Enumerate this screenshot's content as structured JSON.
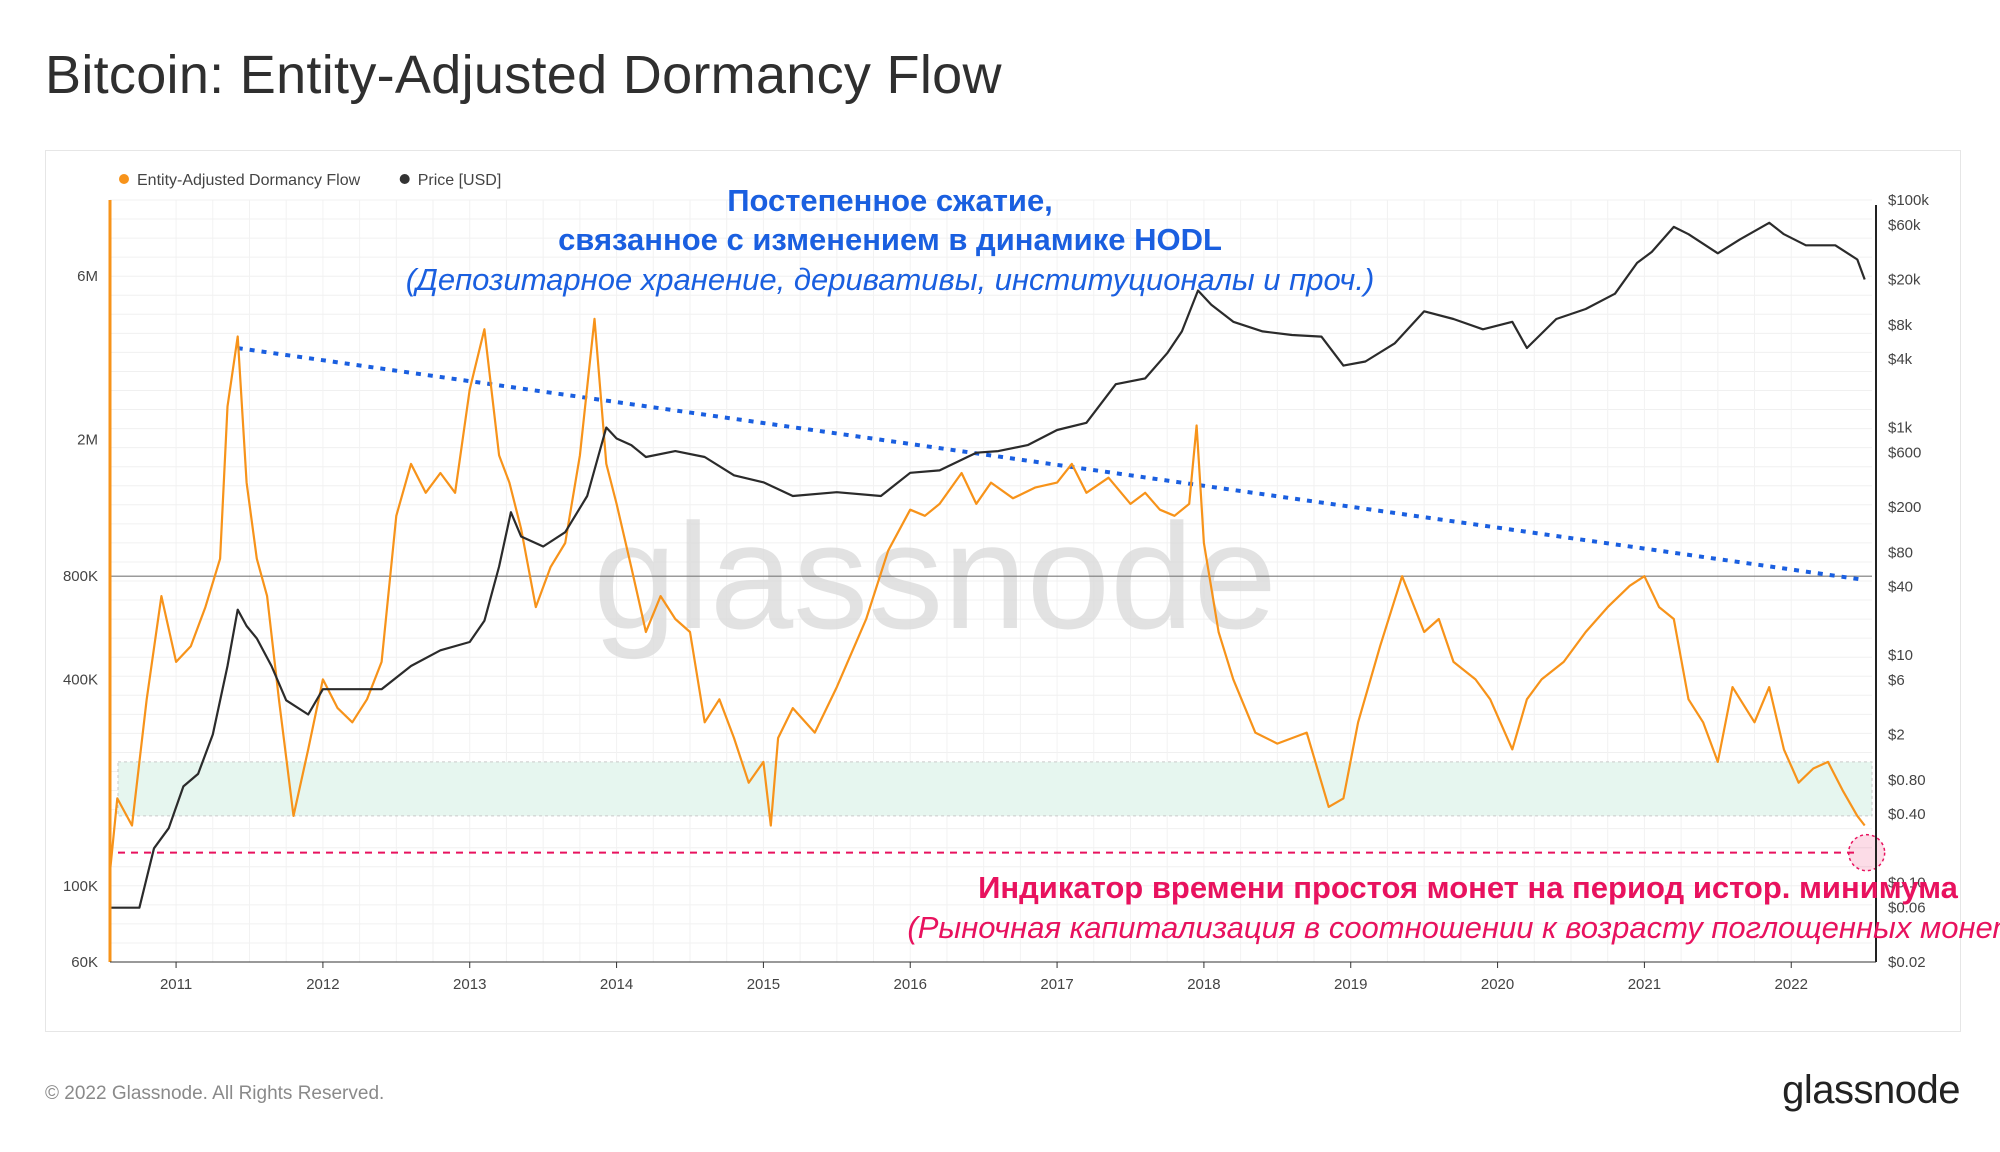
{
  "page": {
    "title": "Bitcoin: Entity-Adjusted Dormancy Flow",
    "copyright": "© 2022 Glassnode. All Rights Reserved.",
    "logo": "glassnode",
    "watermark": "glassnode"
  },
  "legend": [
    {
      "name": "Entity-Adjusted Dormancy Flow",
      "color": "#f7931a"
    },
    {
      "name": "Price [USD]",
      "color": "#333333"
    }
  ],
  "annotations": {
    "compression_line1": "Постепенное сжатие,",
    "compression_line2": "связанное с изменением в динамике HODL",
    "compression_line3": "(Депозитарное хранение, деривативы, институционалы и проч.)",
    "low_line1": "Индикатор времени простоя монет  на период истор. минимума",
    "low_line2": "(Рыночная капитализация в соотношении к возрасту поглощенных монет)",
    "compression_color": "#1a5fe0",
    "low_color": "#e8125e"
  },
  "chart_data": {
    "type": "line",
    "x_ticks": [
      "2011",
      "2012",
      "2013",
      "2014",
      "2015",
      "2016",
      "2017",
      "2018",
      "2019",
      "2020",
      "2021",
      "2022"
    ],
    "x_range": [
      2010.55,
      2022.55
    ],
    "y_left": {
      "label": "",
      "scale": "log",
      "range": [
        60000,
        10000000
      ],
      "tick_labels": [
        "6M",
        "2M",
        "800K",
        "400K",
        "100K",
        "60K"
      ],
      "tick_values": [
        6000000,
        2000000,
        800000,
        400000,
        100000,
        60000
      ]
    },
    "y_right": {
      "label": "",
      "scale": "log",
      "range": [
        0.02,
        100000
      ],
      "tick_labels": [
        "$100k",
        "$60k",
        "$20k",
        "$8k",
        "$4k",
        "$1k",
        "$600",
        "$200",
        "$80",
        "$40",
        "$10",
        "$6",
        "$2",
        "$0.80",
        "$0.40",
        "$0.10",
        "$0.06",
        "$0.02"
      ],
      "tick_values": [
        100000,
        60000,
        20000,
        8000,
        4000,
        1000,
        600,
        200,
        80,
        40,
        10,
        6,
        2,
        0.8,
        0.4,
        0.1,
        0.06,
        0.02
      ]
    },
    "series": [
      {
        "name": "Entity-Adjusted Dormancy Flow",
        "axis": "left",
        "color": "#f7931a",
        "x": [
          2010.55,
          2010.6,
          2010.7,
          2010.8,
          2010.9,
          2011.0,
          2011.1,
          2011.2,
          2011.3,
          2011.35,
          2011.42,
          2011.48,
          2011.55,
          2011.62,
          2011.7,
          2011.8,
          2011.9,
          2012.0,
          2012.1,
          2012.2,
          2012.3,
          2012.4,
          2012.5,
          2012.6,
          2012.7,
          2012.8,
          2012.9,
          2013.0,
          2013.1,
          2013.2,
          2013.27,
          2013.35,
          2013.45,
          2013.55,
          2013.65,
          2013.75,
          2013.85,
          2013.93,
          2014.0,
          2014.1,
          2014.2,
          2014.3,
          2014.4,
          2014.5,
          2014.6,
          2014.7,
          2014.8,
          2014.9,
          2015.0,
          2015.05,
          2015.1,
          2015.2,
          2015.35,
          2015.5,
          2015.7,
          2015.85,
          2016.0,
          2016.1,
          2016.2,
          2016.35,
          2016.45,
          2016.55,
          2016.7,
          2016.85,
          2017.0,
          2017.1,
          2017.2,
          2017.35,
          2017.5,
          2017.6,
          2017.7,
          2017.8,
          2017.9,
          2017.95,
          2018.0,
          2018.1,
          2018.2,
          2018.35,
          2018.5,
          2018.7,
          2018.85,
          2018.95,
          2019.05,
          2019.2,
          2019.35,
          2019.5,
          2019.6,
          2019.7,
          2019.85,
          2019.95,
          2020.1,
          2020.2,
          2020.3,
          2020.45,
          2020.6,
          2020.75,
          2020.9,
          2021.0,
          2021.1,
          2021.2,
          2021.3,
          2021.4,
          2021.5,
          2021.6,
          2021.75,
          2021.85,
          2021.95,
          2022.05,
          2022.15,
          2022.25,
          2022.35,
          2022.45,
          2022.5
        ],
        "values": [
          110000,
          180000,
          150000,
          350000,
          700000,
          450000,
          500000,
          650000,
          900000,
          2500000,
          4000000,
          1500000,
          900000,
          700000,
          350000,
          160000,
          250000,
          400000,
          330000,
          300000,
          350000,
          450000,
          1200000,
          1700000,
          1400000,
          1600000,
          1400000,
          2800000,
          4200000,
          1800000,
          1500000,
          1100000,
          650000,
          850000,
          1000000,
          1800000,
          4500000,
          1700000,
          1300000,
          850000,
          550000,
          700000,
          600000,
          550000,
          300000,
          350000,
          270000,
          200000,
          230000,
          150000,
          270000,
          330000,
          280000,
          380000,
          600000,
          950000,
          1250000,
          1200000,
          1300000,
          1600000,
          1300000,
          1500000,
          1350000,
          1450000,
          1500000,
          1700000,
          1400000,
          1550000,
          1300000,
          1400000,
          1250000,
          1200000,
          1300000,
          2200000,
          1000000,
          550000,
          400000,
          280000,
          260000,
          280000,
          170000,
          180000,
          300000,
          500000,
          800000,
          550000,
          600000,
          450000,
          400000,
          350000,
          250000,
          350000,
          400000,
          450000,
          550000,
          650000,
          750000,
          800000,
          650000,
          600000,
          350000,
          300000,
          230000,
          380000,
          300000,
          380000,
          250000,
          200000,
          220000,
          230000,
          190000,
          160000,
          150000
        ]
      },
      {
        "name": "Price [USD]",
        "axis": "right",
        "color": "#2b2b2b",
        "x": [
          2010.55,
          2010.65,
          2010.75,
          2010.85,
          2010.95,
          2011.05,
          2011.15,
          2011.25,
          2011.35,
          2011.42,
          2011.48,
          2011.55,
          2011.65,
          2011.75,
          2011.9,
          2012.0,
          2012.2,
          2012.4,
          2012.6,
          2012.8,
          2013.0,
          2013.1,
          2013.2,
          2013.28,
          2013.35,
          2013.5,
          2013.65,
          2013.8,
          2013.93,
          2014.0,
          2014.1,
          2014.2,
          2014.4,
          2014.6,
          2014.8,
          2015.0,
          2015.2,
          2015.5,
          2015.8,
          2016.0,
          2016.2,
          2016.45,
          2016.6,
          2016.8,
          2017.0,
          2017.2,
          2017.4,
          2017.6,
          2017.75,
          2017.85,
          2017.96,
          2018.05,
          2018.2,
          2018.4,
          2018.6,
          2018.8,
          2018.95,
          2019.1,
          2019.3,
          2019.5,
          2019.7,
          2019.9,
          2020.1,
          2020.2,
          2020.4,
          2020.6,
          2020.8,
          2020.95,
          2021.05,
          2021.2,
          2021.3,
          2021.5,
          2021.65,
          2021.85,
          2021.95,
          2022.1,
          2022.3,
          2022.45,
          2022.5
        ],
        "values": [
          0.06,
          0.06,
          0.06,
          0.2,
          0.3,
          0.7,
          0.9,
          2,
          8,
          25,
          18,
          14,
          8,
          4,
          3,
          5,
          5,
          5,
          8,
          11,
          13,
          20,
          60,
          180,
          110,
          90,
          120,
          250,
          1000,
          800,
          700,
          550,
          620,
          550,
          380,
          330,
          250,
          270,
          250,
          400,
          420,
          600,
          620,
          700,
          950,
          1100,
          2400,
          2700,
          4500,
          7000,
          16000,
          12000,
          8500,
          7000,
          6500,
          6300,
          3500,
          3800,
          5500,
          10500,
          9000,
          7300,
          8500,
          5000,
          9000,
          11000,
          15000,
          28000,
          35000,
          58000,
          50000,
          34000,
          45000,
          63000,
          50000,
          40000,
          40000,
          30000,
          20000
        ]
      }
    ],
    "reference_lines": {
      "horizontal_solid": 800000,
      "band_low": 160000,
      "band_high": 230000,
      "low_dashed": 125000,
      "trend_start": {
        "x": 2011.42,
        "y": 3700000
      },
      "trend_end": {
        "x": 2022.5,
        "y": 780000
      }
    },
    "grid": true,
    "legend_position": "top-left"
  }
}
